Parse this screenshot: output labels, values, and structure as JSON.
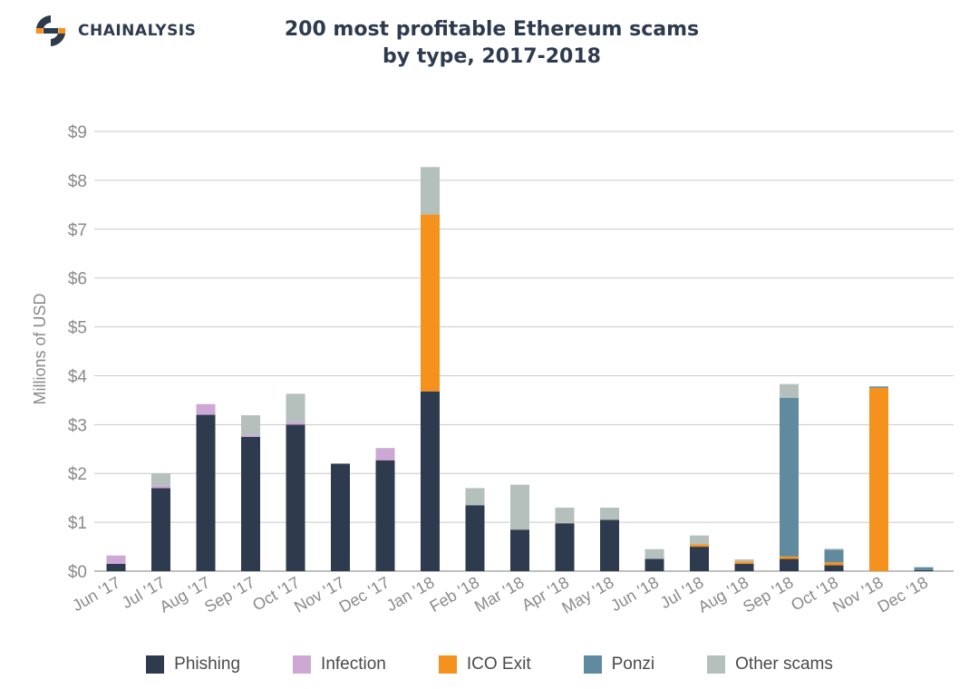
{
  "brand": {
    "name": "CHAINALYSIS",
    "icon": "chainalysis-logo-icon"
  },
  "colors": {
    "phishing": "#2e3b4e",
    "infection": "#cda8d5",
    "ico_exit": "#f5921e",
    "ponzi": "#5f8aa0",
    "other": "#b5bfbc",
    "grid": "#c9c9c9",
    "axis_text": "#8a8a8a"
  },
  "chart_data": {
    "type": "bar",
    "stacked": true,
    "title": "200 most profitable Ethereum scams",
    "subtitle": "by type, 2017-2018",
    "xlabel": "",
    "ylabel": "Millions of USD",
    "ylim": [
      0,
      9
    ],
    "yticks": [
      0,
      1,
      2,
      3,
      4,
      5,
      6,
      7,
      8,
      9
    ],
    "ytick_labels": [
      "$0",
      "$1",
      "$2",
      "$3",
      "$4",
      "$5",
      "$6",
      "$7",
      "$8",
      "$9"
    ],
    "grid": true,
    "legend_position": "bottom",
    "categories": [
      "Jun '17",
      "Jul '17",
      "Aug '17",
      "Sep '17",
      "Oct '17",
      "Nov '17",
      "Dec '17",
      "Jan '18",
      "Feb '18",
      "Mar '18",
      "Apr '18",
      "May '18",
      "Jun '18",
      "Jul '18",
      "Aug '18",
      "Sep '18",
      "Oct '18",
      "Nov '18",
      "Dec '18"
    ],
    "series": [
      {
        "name": "Phishing",
        "color_key": "phishing",
        "values": [
          0.15,
          1.7,
          3.2,
          2.75,
          3.0,
          2.2,
          2.27,
          3.68,
          1.35,
          0.85,
          0.98,
          1.05,
          0.25,
          0.5,
          0.15,
          0.25,
          0.12,
          0.0,
          0.02
        ]
      },
      {
        "name": "Infection",
        "color_key": "infection",
        "values": [
          0.17,
          0.05,
          0.22,
          0.04,
          0.05,
          0.0,
          0.25,
          0.0,
          0.0,
          0.0,
          0.0,
          0.0,
          0.0,
          0.0,
          0.0,
          0.0,
          0.0,
          0.0,
          0.0
        ]
      },
      {
        "name": "ICO Exit",
        "color_key": "ico_exit",
        "values": [
          0.0,
          0.0,
          0.0,
          0.0,
          0.0,
          0.0,
          0.0,
          3.62,
          0.0,
          0.0,
          0.0,
          0.0,
          0.0,
          0.05,
          0.05,
          0.05,
          0.06,
          3.75,
          0.0
        ]
      },
      {
        "name": "Ponzi",
        "color_key": "ponzi",
        "values": [
          0.0,
          0.0,
          0.0,
          0.0,
          0.0,
          0.0,
          0.0,
          0.0,
          0.0,
          0.0,
          0.0,
          0.0,
          0.0,
          0.0,
          0.0,
          3.25,
          0.26,
          0.03,
          0.06
        ]
      },
      {
        "name": "Other scams",
        "color_key": "other",
        "values": [
          0.0,
          0.25,
          0.0,
          0.4,
          0.58,
          0.0,
          0.0,
          0.97,
          0.35,
          0.92,
          0.32,
          0.25,
          0.2,
          0.18,
          0.04,
          0.28,
          0.02,
          0.0,
          0.0
        ]
      }
    ]
  }
}
